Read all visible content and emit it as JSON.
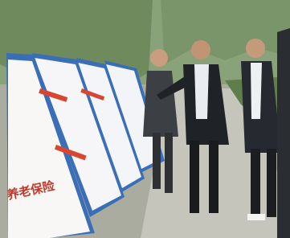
{
  "boards": [
    {
      "heading": "养老保险"
    }
  ]
}
